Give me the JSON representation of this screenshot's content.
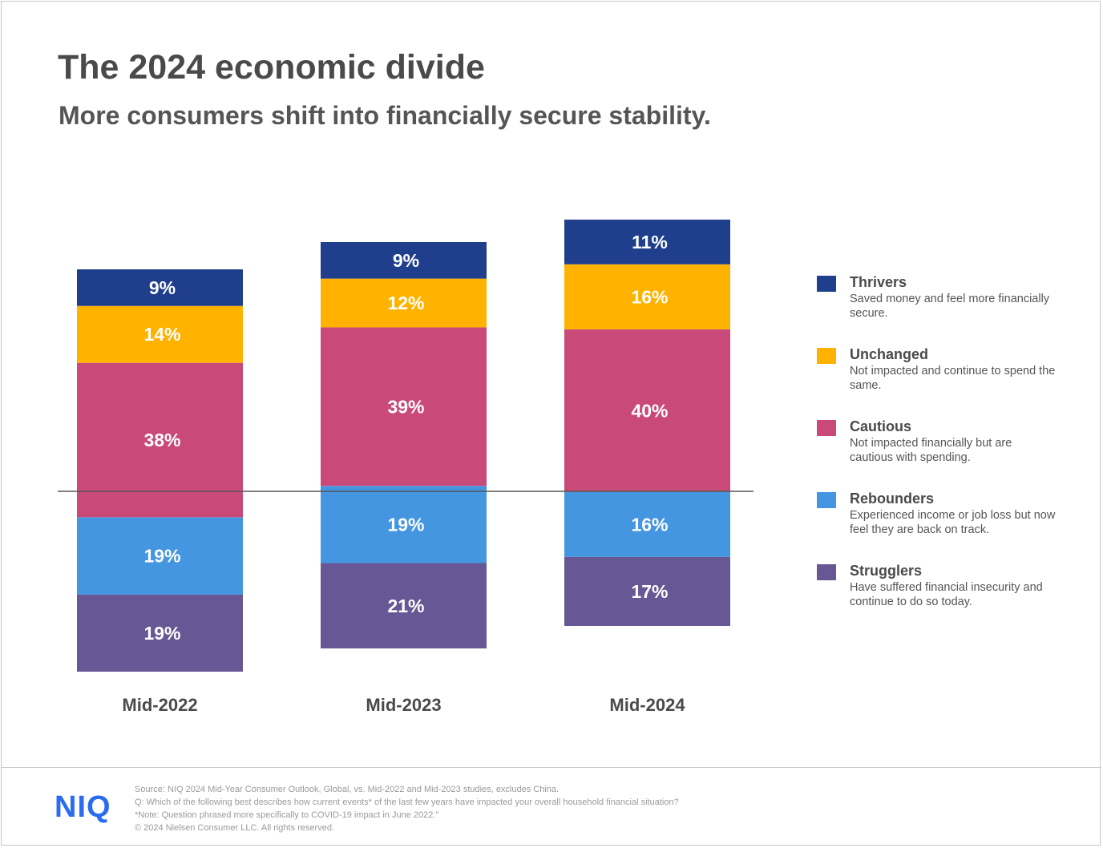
{
  "header": {
    "title": "The 2024 economic divide",
    "subtitle": "More consumers shift into financially secure stability."
  },
  "chart_data": {
    "type": "bar",
    "stacked": true,
    "categories": [
      "Mid-2022",
      "Mid-2023",
      "Mid-2024"
    ],
    "series": [
      {
        "name": "Thrivers",
        "description": "Saved money and feel more financially secure.",
        "color": "#1f3f8c",
        "values": [
          9,
          9,
          11
        ],
        "labels": [
          "9%",
          "9%",
          "11%"
        ]
      },
      {
        "name": "Unchanged",
        "description": "Not impacted and continue to spend the same.",
        "color": "#ffb300",
        "values": [
          14,
          12,
          16
        ],
        "labels": [
          "14%",
          "12%",
          "16%"
        ]
      },
      {
        "name": "Cautious",
        "description": "Not impacted financially but are cautious with spending.",
        "color": "#c94a78",
        "values": [
          38,
          39,
          40
        ],
        "labels": [
          "38%",
          "39%",
          "40%"
        ]
      },
      {
        "name": "Rebounders",
        "description": "Experienced income or job loss but now feel they are back on track.",
        "color": "#4596e0",
        "values": [
          19,
          19,
          16
        ],
        "labels": [
          "19%",
          "19%",
          "16%"
        ]
      },
      {
        "name": "Strugglers",
        "description": "Have suffered financial insecurity and continue to do so today.",
        "color": "#675895",
        "values": [
          19,
          21,
          17
        ],
        "labels": [
          "19%",
          "21%",
          "17%"
        ]
      }
    ],
    "legend_position": "right",
    "divider_line": true,
    "grid": false
  },
  "footer": {
    "logo": "NIQ",
    "notes": [
      "Source: NIQ 2024 Mid-Year Consumer Outlook, Global, vs. Mid-2022 and Mid-2023 studies, excludes China.",
      "Q: Which of the following best describes how current events* of the last few years have impacted your overall household financial situation?",
      "*Note: Question phrased more specifically to COVID-19 impact in June 2022.\"",
      "© 2024 Nielsen Consumer LLC. All rights reserved."
    ]
  }
}
